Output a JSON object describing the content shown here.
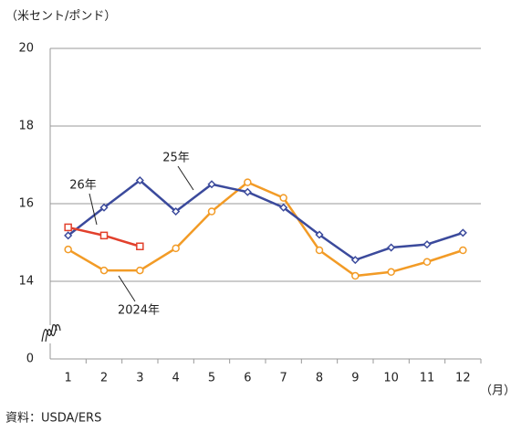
{
  "chart_data": {
    "type": "line",
    "unit_label": "（米セント/ポンド）",
    "x_unit_label": "（月）",
    "source": "資料：USDA/ERS",
    "categories": [
      "1",
      "2",
      "3",
      "4",
      "5",
      "6",
      "7",
      "8",
      "9",
      "10",
      "11",
      "12"
    ],
    "series": [
      {
        "name": "25年",
        "color": "#3b4a9c",
        "marker": "diamond",
        "values": [
          15.18,
          15.9,
          16.6,
          15.8,
          16.5,
          16.3,
          15.9,
          15.2,
          14.55,
          14.87,
          14.95,
          15.25
        ]
      },
      {
        "name": "2024年",
        "color": "#f29b26",
        "marker": "circle",
        "values": [
          14.82,
          14.28,
          14.28,
          14.85,
          15.8,
          16.55,
          16.15,
          14.8,
          14.14,
          14.24,
          14.5,
          14.8
        ]
      },
      {
        "name": "26年",
        "color": "#e2402c",
        "marker": "square",
        "values": [
          15.39,
          15.18,
          14.9,
          null,
          null,
          null,
          null,
          null,
          null,
          null,
          null,
          null
        ]
      }
    ],
    "ylim": [
      0,
      20
    ],
    "yticks": [
      0,
      14,
      16,
      18,
      20
    ],
    "axis_break": [
      0,
      14
    ],
    "grid": true
  }
}
